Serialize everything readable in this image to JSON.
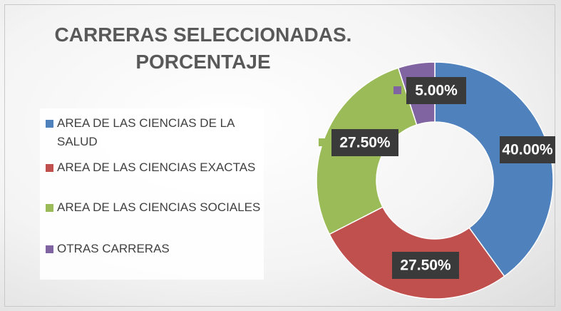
{
  "chart_data": {
    "type": "donut",
    "title": "CARRERAS SELECCIONADAS. PORCENTAJE",
    "categories": [
      "AREA DE LAS CIENCIAS DE LA SALUD",
      "AREA DE LAS CIENCIAS EXACTAS",
      "AREA DE LAS CIENCIAS SOCIALES",
      "OTRAS CARRERAS"
    ],
    "values": [
      40,
      27.5,
      27.5,
      5
    ],
    "value_labels": [
      "40.00%",
      "27.50%",
      "27.50%",
      "5.00%"
    ],
    "colors": [
      "#4f81bd",
      "#c0504d",
      "#9bbb59",
      "#8064a2"
    ],
    "legend": "left"
  }
}
